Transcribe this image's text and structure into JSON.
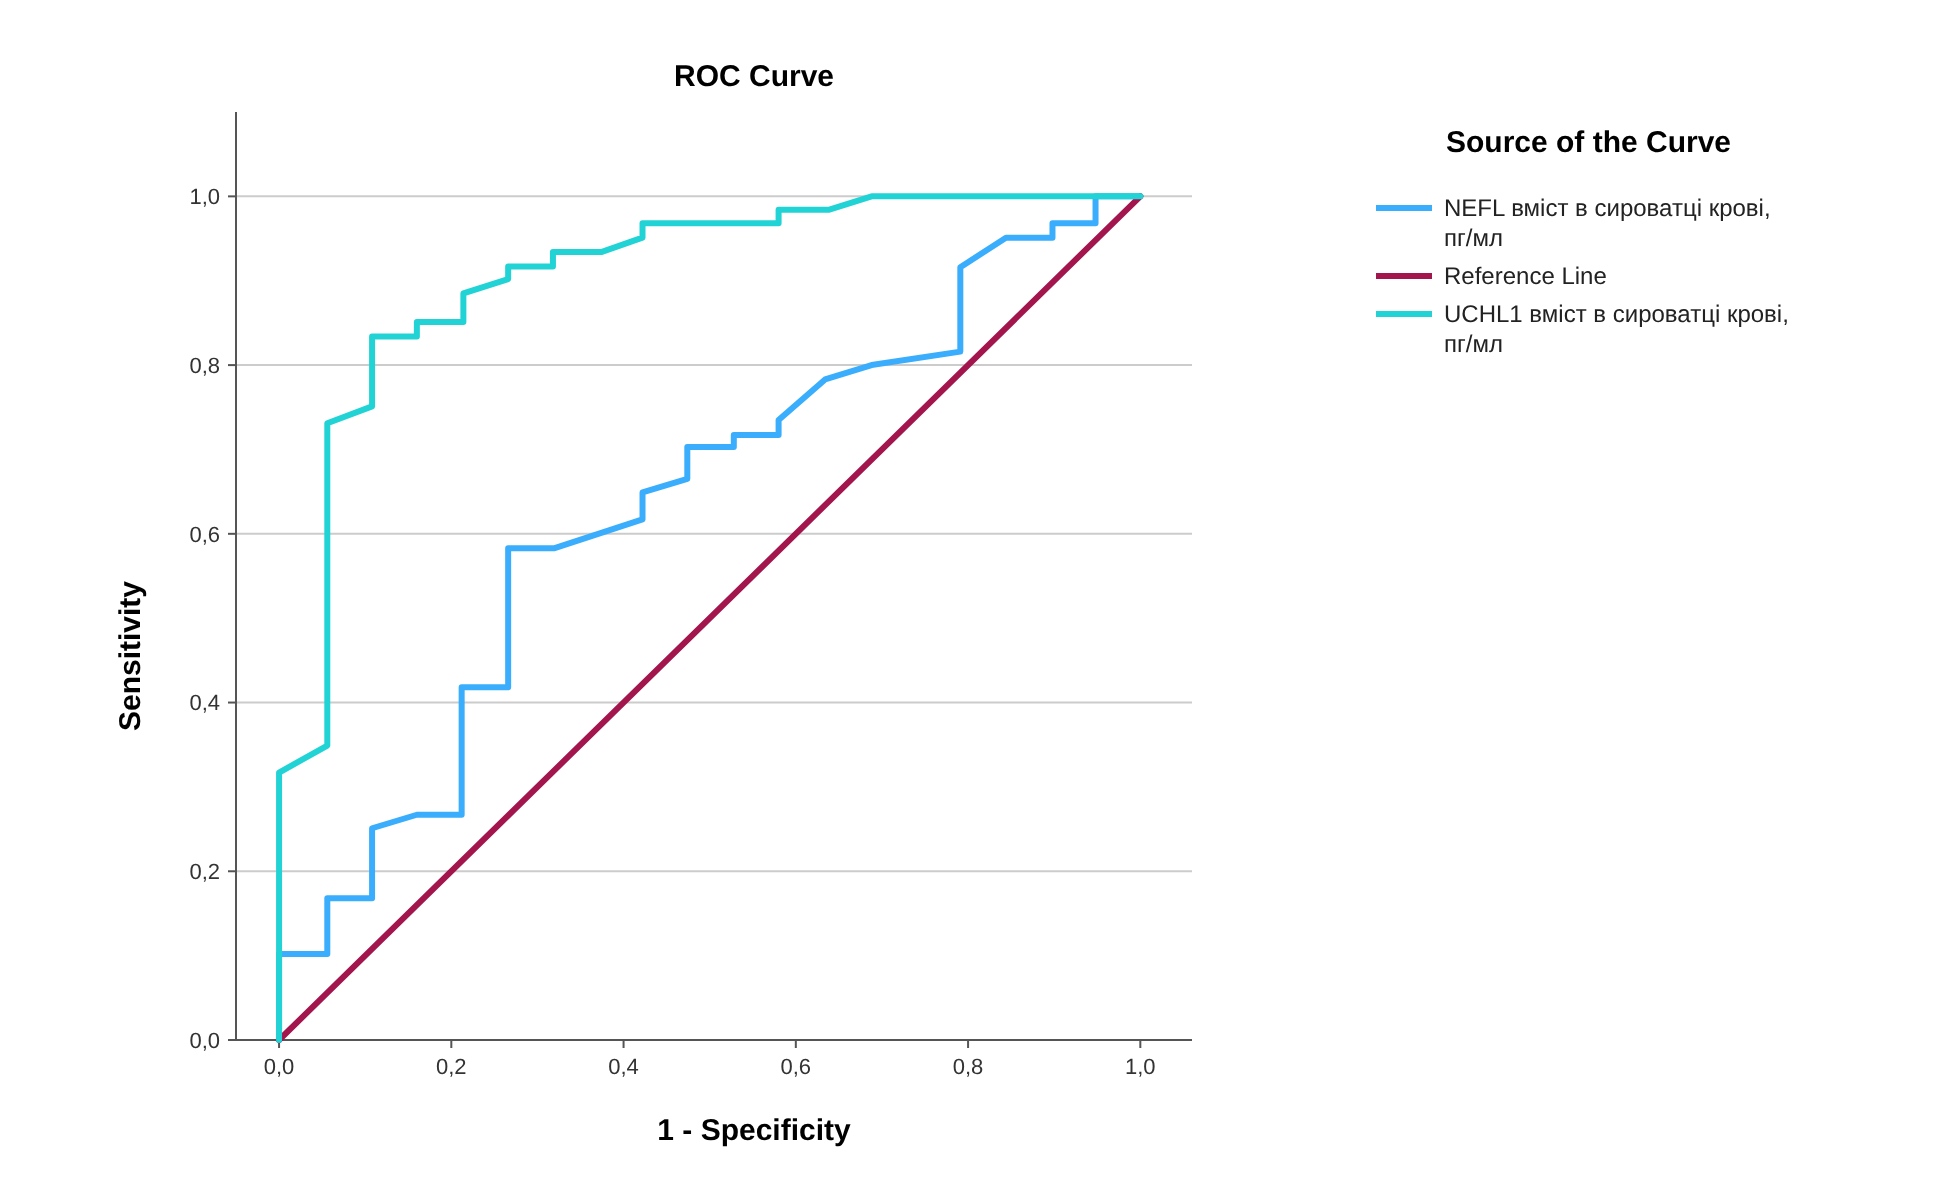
{
  "chart_data": {
    "type": "line",
    "title": "ROC Curve",
    "xlabel": "1 - Specificity",
    "ylabel": "Sensitivity",
    "legend_title": "Source of the Curve",
    "legend": "right",
    "grid": "y",
    "line_style": "solid",
    "marker": "none",
    "xlim": [
      -0.05,
      1.06
    ],
    "ylim": [
      0,
      1.1
    ],
    "xticks": [
      {
        "value": 0,
        "label": "0,0"
      },
      {
        "value": 0.2,
        "label": "0,2"
      },
      {
        "value": 0.4,
        "label": "0,4"
      },
      {
        "value": 0.6,
        "label": "0,6"
      },
      {
        "value": 0.8,
        "label": "0,8"
      },
      {
        "value": 1,
        "label": "1,0"
      }
    ],
    "yticks": [
      {
        "value": 0,
        "label": "0,0"
      },
      {
        "value": 0.2,
        "label": "0,2"
      },
      {
        "value": 0.4,
        "label": "0,4"
      },
      {
        "value": 0.6,
        "label": "0,6"
      },
      {
        "value": 0.8,
        "label": "0,8"
      },
      {
        "value": 1,
        "label": "1,0"
      }
    ],
    "series": [
      {
        "name": "NEFL вміст в сироватці крові, пг/мл",
        "color": "#3aaefc",
        "x": [
          0,
          0,
          0.056,
          0.056,
          0.108,
          0.108,
          0.16,
          0.212,
          0.212,
          0.266,
          0.266,
          0.32,
          0.422,
          0.422,
          0.474,
          0.474,
          0.528,
          0.528,
          0.58,
          0.58,
          0.634,
          0.688,
          0.791,
          0.791,
          0.844,
          0.898,
          0.898,
          0.948,
          0.948,
          1
        ],
        "values": [
          0,
          0.102,
          0.102,
          0.168,
          0.168,
          0.251,
          0.267,
          0.267,
          0.418,
          0.418,
          0.583,
          0.583,
          0.617,
          0.649,
          0.665,
          0.703,
          0.703,
          0.717,
          0.717,
          0.735,
          0.783,
          0.8,
          0.816,
          0.916,
          0.951,
          0.951,
          0.968,
          0.968,
          1,
          1
        ]
      },
      {
        "name": "Reference Line",
        "color": "#a3154d",
        "x": [
          0,
          1
        ],
        "values": [
          0,
          1
        ]
      },
      {
        "name": "UCHL1 вміст в сироватці крові, пг/мл",
        "color": "#22d3d6",
        "x": [
          0,
          0,
          0.056,
          0.056,
          0.108,
          0.108,
          0.16,
          0.16,
          0.214,
          0.214,
          0.266,
          0.266,
          0.318,
          0.318,
          0.374,
          0.422,
          0.422,
          0.58,
          0.58,
          0.638,
          0.688,
          1
        ],
        "values": [
          0,
          0.317,
          0.349,
          0.731,
          0.751,
          0.834,
          0.834,
          0.851,
          0.851,
          0.885,
          0.902,
          0.917,
          0.917,
          0.934,
          0.934,
          0.951,
          0.968,
          0.968,
          0.984,
          0.984,
          1,
          1
        ]
      }
    ]
  }
}
